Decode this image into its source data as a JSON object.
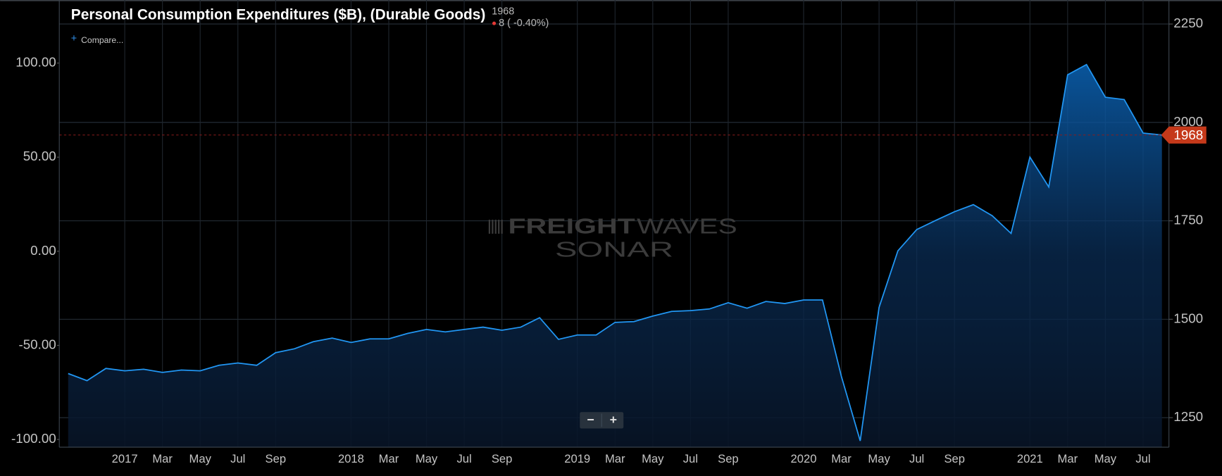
{
  "chart_data": {
    "type": "area",
    "title": "Personal Consumption Expenditures ($B), (Durable Goods)",
    "change": "8 ( -0.40%)",
    "compare_icon": "+",
    "compare": "Compare...",
    "watermark": [
      "FREIGHT",
      "WAVES",
      "SONAR"
    ],
    "zoom_controls": [
      "−",
      "+"
    ],
    "x": [
      null,
      null,
      null,
      "2017",
      null,
      "Mar",
      null,
      "May",
      null,
      "Jul",
      null,
      "Sep",
      null,
      null,
      null,
      "2018",
      null,
      "Mar",
      null,
      "May",
      null,
      "Jul",
      null,
      "Sep",
      null,
      null,
      null,
      "2019",
      null,
      "Mar",
      null,
      "May",
      null,
      "Jul",
      null,
      "Sep",
      null,
      null,
      null,
      "2020",
      null,
      "Mar",
      null,
      "May",
      null,
      "Jul",
      null,
      "Sep",
      null,
      null,
      null,
      "2021",
      null,
      "Mar",
      null,
      "May",
      null,
      "Jul",
      null
    ],
    "series": [
      {
        "color": "#2196f3",
        "values": [
          1362,
          1344,
          1375,
          1369,
          1373,
          1365,
          1371,
          1369,
          1383,
          1389,
          1383,
          1415,
          1425,
          1443,
          1452,
          1441,
          1450,
          1450,
          1464,
          1474,
          1468,
          1474,
          1480,
          1472,
          1480,
          1504,
          1449,
          1460,
          1460,
          1492,
          1494,
          1508,
          1520,
          1522,
          1526,
          1542,
          1528,
          1545,
          1540,
          1549,
          1549,
          1355,
          1191,
          1530,
          1674,
          1728,
          1751,
          1773,
          1791,
          1763,
          1718,
          1912,
          1836,
          2121,
          2147,
          2064,
          2058,
          1973,
          1968
        ]
      }
    ],
    "ylim": [
      1175,
      2311
    ],
    "yticks": [
      1250,
      1500,
      1750,
      2000,
      2250
    ],
    "y2lim": [
      -104.1,
      133.5
    ],
    "y2ticks": [
      {
        "value": -100,
        "label": "-100.00"
      },
      {
        "value": -50,
        "label": "-50.00"
      },
      {
        "value": 0,
        "label": "0.00"
      },
      {
        "value": 50,
        "label": "50.00"
      },
      {
        "value": 100,
        "label": "100.00"
      }
    ],
    "grid": true
  }
}
